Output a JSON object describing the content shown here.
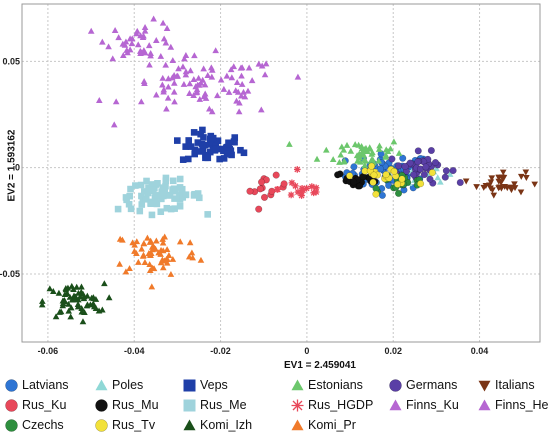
{
  "chart_data": {
    "type": "scatter",
    "title": "",
    "xlabel": "EV1 = 2.459041",
    "ylabel": "EV2 = 1.593162",
    "xlim": [
      -0.066,
      0.054
    ],
    "ylim": [
      -0.082,
      0.077
    ],
    "xticks": [
      "-0.06",
      "-0.04",
      "-0.02",
      "0",
      "0.02",
      "0.04"
    ],
    "yticks": [
      "0.05",
      "0",
      "-0.05"
    ],
    "grid": true,
    "legend_position": "bottom",
    "series": [
      {
        "name": "Latvians",
        "color": "#2e75d4",
        "marker": "circle",
        "cluster": {
          "cx": 0.019,
          "cy": -0.002,
          "sx": 0.007,
          "sy": 0.006,
          "n": 60
        }
      },
      {
        "name": "Poles",
        "color": "#8fd8d6",
        "marker": "triangle",
        "cluster": {
          "cx": 0.027,
          "cy": -0.004,
          "sx": 0.005,
          "sy": 0.004,
          "n": 12
        }
      },
      {
        "name": "Veps",
        "color": "#1f3fa8",
        "marker": "square",
        "cluster": {
          "cx": -0.022,
          "cy": 0.009,
          "sx": 0.005,
          "sy": 0.005,
          "n": 55
        }
      },
      {
        "name": "Estonians",
        "color": "#6cc76c",
        "marker": "triangle",
        "cluster": {
          "cx": 0.013,
          "cy": 0.007,
          "sx": 0.007,
          "sy": 0.005,
          "n": 50
        }
      },
      {
        "name": "Germans",
        "color": "#5a3fa6",
        "marker": "circle",
        "cluster": {
          "cx": 0.026,
          "cy": 0.0,
          "sx": 0.005,
          "sy": 0.005,
          "n": 40
        }
      },
      {
        "name": "Italians",
        "color": "#7a3415",
        "marker": "triangle-down",
        "cluster": {
          "cx": 0.045,
          "cy": -0.007,
          "sx": 0.004,
          "sy": 0.004,
          "n": 32
        }
      },
      {
        "name": "Rus_Ku",
        "color": "#e8485a",
        "marker": "circle",
        "cluster": {
          "cx": -0.009,
          "cy": -0.01,
          "sx": 0.003,
          "sy": 0.004,
          "n": 14
        }
      },
      {
        "name": "Rus_Mu",
        "color": "#111111",
        "marker": "circle",
        "cluster": {
          "cx": 0.012,
          "cy": -0.006,
          "sx": 0.004,
          "sy": 0.003,
          "n": 20
        }
      },
      {
        "name": "Rus_Me",
        "color": "#9fd3dc",
        "marker": "square",
        "cluster": {
          "cx": -0.034,
          "cy": -0.013,
          "sx": 0.007,
          "sy": 0.005,
          "n": 70
        }
      },
      {
        "name": "Rus_HGDP",
        "color": "#e8485a",
        "marker": "asterisk",
        "cluster": {
          "cx": -0.001,
          "cy": -0.01,
          "sx": 0.004,
          "sy": 0.004,
          "n": 16
        }
      },
      {
        "name": "Finns_Ku",
        "color": "#b666d2",
        "marker": "triangle",
        "cluster": {
          "cx": -0.024,
          "cy": 0.038,
          "sx": 0.013,
          "sy": 0.01,
          "n": 90
        }
      },
      {
        "name": "Finns_He",
        "color": "#b666d2",
        "marker": "triangle",
        "cluster": {
          "cx": -0.038,
          "cy": 0.06,
          "sx": 0.006,
          "sy": 0.006,
          "n": 40
        }
      },
      {
        "name": "Czechs",
        "color": "#2e8f3e",
        "marker": "circle",
        "cluster": {
          "cx": 0.021,
          "cy": -0.007,
          "sx": 0.005,
          "sy": 0.003,
          "n": 20
        }
      },
      {
        "name": "Rus_Tv",
        "color": "#f2e13a",
        "marker": "circle",
        "cluster": {
          "cx": 0.018,
          "cy": -0.004,
          "sx": 0.005,
          "sy": 0.003,
          "n": 22
        }
      },
      {
        "name": "Komi_Izh",
        "color": "#1a4f1a",
        "marker": "triangle",
        "cluster": {
          "cx": -0.054,
          "cy": -0.063,
          "sx": 0.005,
          "sy": 0.006,
          "n": 60
        }
      },
      {
        "name": "Komi_Pr",
        "color": "#f07a2a",
        "marker": "triangle",
        "cluster": {
          "cx": -0.035,
          "cy": -0.04,
          "sx": 0.007,
          "sy": 0.008,
          "n": 60
        }
      }
    ]
  }
}
